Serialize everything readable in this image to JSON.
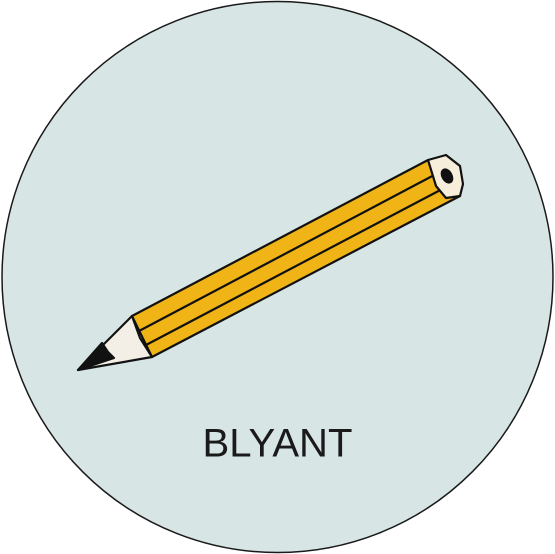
{
  "label": "BLYANT"
}
